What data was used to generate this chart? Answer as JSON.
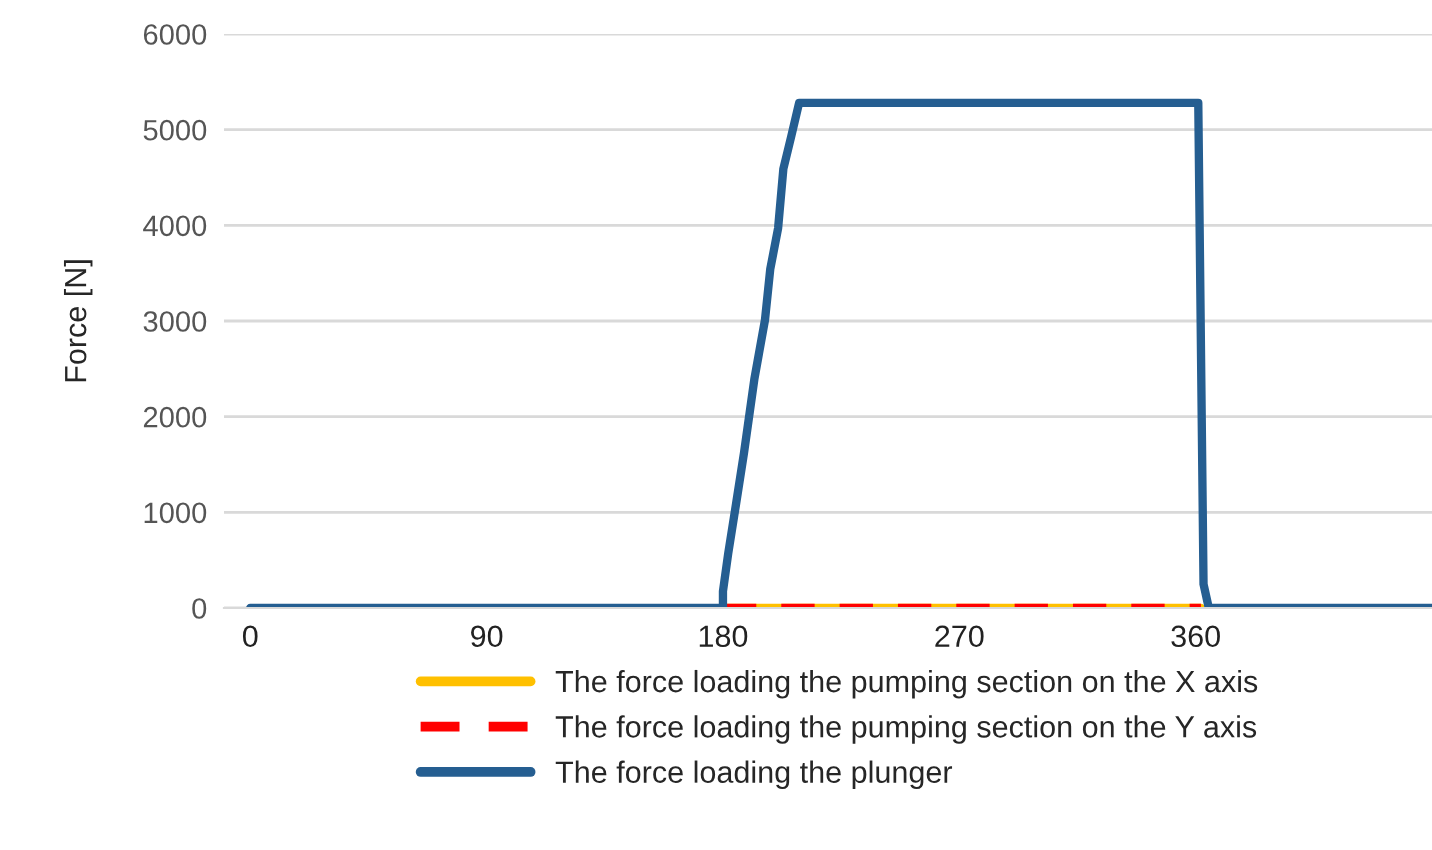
{
  "chart_data": {
    "type": "line",
    "ylabel": "Force [N]",
    "xlim": [
      -10,
      450
    ],
    "xticks": [
      0,
      90,
      180,
      270,
      360
    ],
    "ylim": [
      0,
      6000
    ],
    "yticks": [
      0,
      1000,
      2000,
      3000,
      4000,
      5000,
      6000
    ],
    "grid": "y",
    "legend": "bottom",
    "marker": "none",
    "series": [
      {
        "name": "The force loading the pumping section on the X axis",
        "color": "#ffc000",
        "line_style": "solid",
        "x": [
          180,
          362
        ],
        "values": [
          0,
          0
        ]
      },
      {
        "name": "The force loading the pumping section on the Y axis",
        "color": "#ff0000",
        "line_style": "dashed",
        "x": [
          180,
          362
        ],
        "values": [
          0,
          0
        ]
      },
      {
        "name": "The force loading the plunger",
        "color": "#255e91",
        "line_style": "solid",
        "x": [
          0,
          180,
          180,
          182,
          185,
          188,
          192,
          196,
          198,
          201,
          203,
          206,
          209,
          361,
          363,
          365,
          450
        ],
        "values": [
          0,
          0,
          175,
          570,
          1090,
          1620,
          2400,
          3010,
          3540,
          3970,
          4590,
          4930,
          5280,
          5280,
          250,
          0,
          0
        ]
      }
    ]
  }
}
